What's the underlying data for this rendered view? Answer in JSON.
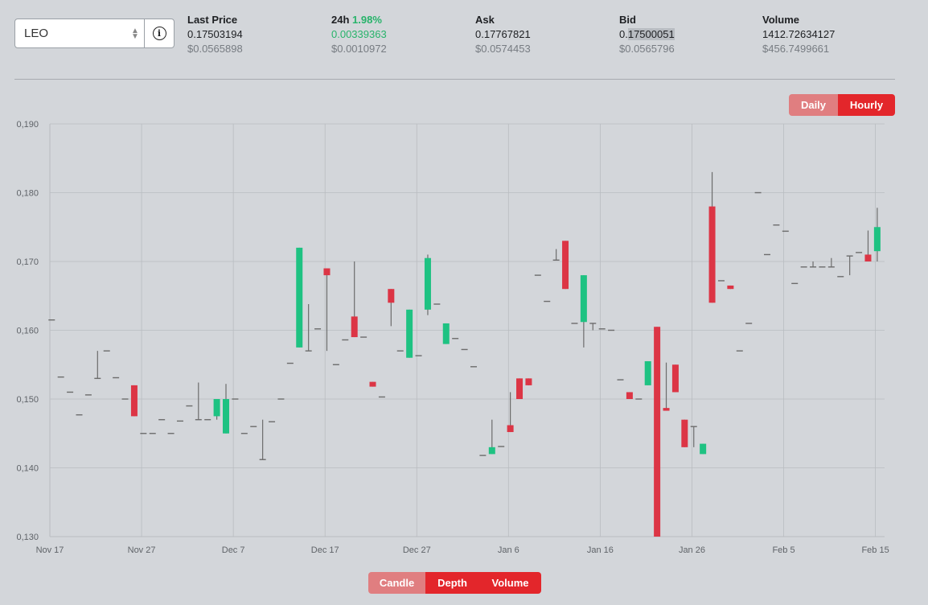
{
  "symbol": {
    "value": "LEO"
  },
  "stats": {
    "last_price": {
      "label": "Last Price",
      "main": "0.17503194",
      "sub": "$0.0565898"
    },
    "change_24h": {
      "label": "24h",
      "change": "1.98%",
      "main": "0.00339363",
      "sub": "$0.0010972"
    },
    "ask": {
      "label": "Ask",
      "main": "0.17767821",
      "sub": "$0.0574453"
    },
    "bid": {
      "label": "Bid",
      "main_prefix": "0.",
      "main_highlight": "17500051",
      "sub": "$0.0565796"
    },
    "volume": {
      "label": "Volume",
      "main": "1412.72634127",
      "sub": "$456.7499661"
    }
  },
  "range_toggle": {
    "daily": "Daily",
    "hourly": "Hourly",
    "selected": "Hourly"
  },
  "view_toggle": {
    "candle": "Candle",
    "depth": "Depth",
    "volume": "Volume",
    "selected": "Candle"
  },
  "colors": {
    "up": "#1ec282",
    "down": "#dc3545",
    "wick": "#6c6c6c",
    "grid": "#b9bcc0"
  },
  "chart_data": {
    "type": "candlestick",
    "ylim": [
      0.13,
      0.19
    ],
    "yticks": [
      "0,130",
      "0,140",
      "0,150",
      "0,160",
      "0,170",
      "0,180",
      "0,190"
    ],
    "xlim": [
      0,
      91
    ],
    "xticks": [
      {
        "day": 0,
        "label": "Nov 17"
      },
      {
        "day": 10,
        "label": "Nov 27"
      },
      {
        "day": 20,
        "label": "Dec 7"
      },
      {
        "day": 30,
        "label": "Dec 17"
      },
      {
        "day": 40,
        "label": "Dec 27"
      },
      {
        "day": 50,
        "label": "Jan 6"
      },
      {
        "day": 60,
        "label": "Jan 16"
      },
      {
        "day": 70,
        "label": "Jan 26"
      },
      {
        "day": 80,
        "label": "Feb 5"
      },
      {
        "day": 90,
        "label": "Feb 15"
      }
    ],
    "candles": [
      {
        "d": 0.2,
        "o": 0.1615,
        "h": 0.1615,
        "l": 0.1615,
        "c": 0.1615
      },
      {
        "d": 1.2,
        "o": 0.1532,
        "h": 0.1532,
        "l": 0.1532,
        "c": 0.1532
      },
      {
        "d": 2.2,
        "o": 0.151,
        "h": 0.151,
        "l": 0.151,
        "c": 0.151
      },
      {
        "d": 3.2,
        "o": 0.1477,
        "h": 0.1477,
        "l": 0.1477,
        "c": 0.1477
      },
      {
        "d": 4.2,
        "o": 0.1506,
        "h": 0.1506,
        "l": 0.1506,
        "c": 0.1506
      },
      {
        "d": 5.2,
        "o": 0.153,
        "h": 0.157,
        "l": 0.153,
        "c": 0.153
      },
      {
        "d": 6.2,
        "o": 0.157,
        "h": 0.157,
        "l": 0.157,
        "c": 0.157
      },
      {
        "d": 7.2,
        "o": 0.1531,
        "h": 0.1531,
        "l": 0.1531,
        "c": 0.1531
      },
      {
        "d": 8.2,
        "o": 0.15,
        "h": 0.15,
        "l": 0.15,
        "c": 0.15
      },
      {
        "d": 9.2,
        "o": 0.152,
        "h": 0.152,
        "l": 0.1475,
        "c": 0.1475
      },
      {
        "d": 10.2,
        "o": 0.145,
        "h": 0.145,
        "l": 0.145,
        "c": 0.145
      },
      {
        "d": 11.2,
        "o": 0.145,
        "h": 0.145,
        "l": 0.145,
        "c": 0.145
      },
      {
        "d": 12.2,
        "o": 0.147,
        "h": 0.147,
        "l": 0.147,
        "c": 0.147
      },
      {
        "d": 13.2,
        "o": 0.145,
        "h": 0.145,
        "l": 0.145,
        "c": 0.145
      },
      {
        "d": 14.2,
        "o": 0.1468,
        "h": 0.1468,
        "l": 0.1468,
        "c": 0.1468
      },
      {
        "d": 15.2,
        "o": 0.149,
        "h": 0.149,
        "l": 0.149,
        "c": 0.149
      },
      {
        "d": 16.2,
        "o": 0.147,
        "h": 0.1524,
        "l": 0.147,
        "c": 0.147
      },
      {
        "d": 17.2,
        "o": 0.147,
        "h": 0.147,
        "l": 0.147,
        "c": 0.147
      },
      {
        "d": 18.2,
        "o": 0.1475,
        "h": 0.15,
        "l": 0.147,
        "c": 0.15
      },
      {
        "d": 19.2,
        "o": 0.145,
        "h": 0.1522,
        "l": 0.145,
        "c": 0.15
      },
      {
        "d": 20.2,
        "o": 0.15,
        "h": 0.15,
        "l": 0.15,
        "c": 0.15
      },
      {
        "d": 21.2,
        "o": 0.145,
        "h": 0.145,
        "l": 0.145,
        "c": 0.145
      },
      {
        "d": 22.2,
        "o": 0.146,
        "h": 0.146,
        "l": 0.146,
        "c": 0.146
      },
      {
        "d": 23.2,
        "o": 0.1412,
        "h": 0.147,
        "l": 0.1412,
        "c": 0.1412
      },
      {
        "d": 24.2,
        "o": 0.1467,
        "h": 0.1467,
        "l": 0.1467,
        "c": 0.1467
      },
      {
        "d": 25.2,
        "o": 0.15,
        "h": 0.15,
        "l": 0.15,
        "c": 0.15
      },
      {
        "d": 26.2,
        "o": 0.1552,
        "h": 0.1552,
        "l": 0.1552,
        "c": 0.1552
      },
      {
        "d": 27.2,
        "o": 0.1575,
        "h": 0.172,
        "l": 0.1575,
        "c": 0.172
      },
      {
        "d": 28.2,
        "o": 0.157,
        "h": 0.1638,
        "l": 0.157,
        "c": 0.157
      },
      {
        "d": 29.2,
        "o": 0.1602,
        "h": 0.1602,
        "l": 0.1602,
        "c": 0.1602
      },
      {
        "d": 30.2,
        "o": 0.169,
        "h": 0.169,
        "l": 0.157,
        "c": 0.168
      },
      {
        "d": 31.2,
        "o": 0.155,
        "h": 0.155,
        "l": 0.155,
        "c": 0.155
      },
      {
        "d": 32.2,
        "o": 0.1586,
        "h": 0.1586,
        "l": 0.1586,
        "c": 0.1586
      },
      {
        "d": 33.2,
        "o": 0.162,
        "h": 0.17,
        "l": 0.159,
        "c": 0.159
      },
      {
        "d": 34.2,
        "o": 0.159,
        "h": 0.159,
        "l": 0.159,
        "c": 0.159
      },
      {
        "d": 35.2,
        "o": 0.1525,
        "h": 0.1525,
        "l": 0.1518,
        "c": 0.1518
      },
      {
        "d": 36.2,
        "o": 0.1503,
        "h": 0.1503,
        "l": 0.1503,
        "c": 0.1503
      },
      {
        "d": 37.2,
        "o": 0.166,
        "h": 0.166,
        "l": 0.1606,
        "c": 0.164
      },
      {
        "d": 38.2,
        "o": 0.157,
        "h": 0.157,
        "l": 0.157,
        "c": 0.157
      },
      {
        "d": 39.2,
        "o": 0.156,
        "h": 0.163,
        "l": 0.156,
        "c": 0.163
      },
      {
        "d": 40.2,
        "o": 0.1563,
        "h": 0.1563,
        "l": 0.1563,
        "c": 0.1563
      },
      {
        "d": 41.2,
        "o": 0.163,
        "h": 0.171,
        "l": 0.1622,
        "c": 0.1705
      },
      {
        "d": 42.2,
        "o": 0.1638,
        "h": 0.1638,
        "l": 0.1638,
        "c": 0.1638
      },
      {
        "d": 43.2,
        "o": 0.158,
        "h": 0.161,
        "l": 0.158,
        "c": 0.161
      },
      {
        "d": 44.2,
        "o": 0.1588,
        "h": 0.1588,
        "l": 0.1588,
        "c": 0.1588
      },
      {
        "d": 45.2,
        "o": 0.1572,
        "h": 0.1572,
        "l": 0.1572,
        "c": 0.1572
      },
      {
        "d": 46.2,
        "o": 0.1547,
        "h": 0.1547,
        "l": 0.1547,
        "c": 0.1547
      },
      {
        "d": 47.2,
        "o": 0.1418,
        "h": 0.1418,
        "l": 0.1418,
        "c": 0.1418
      },
      {
        "d": 48.2,
        "o": 0.142,
        "h": 0.147,
        "l": 0.142,
        "c": 0.143
      },
      {
        "d": 49.2,
        "o": 0.1431,
        "h": 0.1431,
        "l": 0.1431,
        "c": 0.1431
      },
      {
        "d": 50.2,
        "o": 0.1462,
        "h": 0.151,
        "l": 0.1452,
        "c": 0.1452
      },
      {
        "d": 51.2,
        "o": 0.153,
        "h": 0.153,
        "l": 0.15,
        "c": 0.15
      },
      {
        "d": 52.2,
        "o": 0.153,
        "h": 0.153,
        "l": 0.152,
        "c": 0.152
      },
      {
        "d": 53.2,
        "o": 0.168,
        "h": 0.168,
        "l": 0.168,
        "c": 0.168
      },
      {
        "d": 54.2,
        "o": 0.1642,
        "h": 0.1642,
        "l": 0.1642,
        "c": 0.1642
      },
      {
        "d": 55.2,
        "o": 0.1702,
        "h": 0.1718,
        "l": 0.1702,
        "c": 0.1702
      },
      {
        "d": 56.2,
        "o": 0.173,
        "h": 0.173,
        "l": 0.166,
        "c": 0.166
      },
      {
        "d": 57.2,
        "o": 0.161,
        "h": 0.161,
        "l": 0.161,
        "c": 0.161
      },
      {
        "d": 58.2,
        "o": 0.1612,
        "h": 0.168,
        "l": 0.1575,
        "c": 0.168
      },
      {
        "d": 59.2,
        "o": 0.161,
        "h": 0.161,
        "l": 0.16,
        "c": 0.161
      },
      {
        "d": 60.2,
        "o": 0.1602,
        "h": 0.1602,
        "l": 0.1602,
        "c": 0.1602
      },
      {
        "d": 61.2,
        "o": 0.16,
        "h": 0.16,
        "l": 0.16,
        "c": 0.16
      },
      {
        "d": 62.2,
        "o": 0.1528,
        "h": 0.1528,
        "l": 0.1528,
        "c": 0.1528
      },
      {
        "d": 63.2,
        "o": 0.151,
        "h": 0.151,
        "l": 0.15,
        "c": 0.15
      },
      {
        "d": 64.2,
        "o": 0.15,
        "h": 0.15,
        "l": 0.15,
        "c": 0.15
      },
      {
        "d": 65.2,
        "o": 0.152,
        "h": 0.1555,
        "l": 0.152,
        "c": 0.1555
      },
      {
        "d": 66.2,
        "o": 0.1605,
        "h": 0.1605,
        "l": 0.13,
        "c": 0.13
      },
      {
        "d": 67.2,
        "o": 0.1487,
        "h": 0.1553,
        "l": 0.1483,
        "c": 0.1483
      },
      {
        "d": 68.2,
        "o": 0.155,
        "h": 0.155,
        "l": 0.151,
        "c": 0.151
      },
      {
        "d": 69.2,
        "o": 0.147,
        "h": 0.147,
        "l": 0.143,
        "c": 0.143
      },
      {
        "d": 70.2,
        "o": 0.146,
        "h": 0.146,
        "l": 0.143,
        "c": 0.146
      },
      {
        "d": 71.2,
        "o": 0.142,
        "h": 0.1435,
        "l": 0.142,
        "c": 0.1435
      },
      {
        "d": 72.2,
        "o": 0.178,
        "h": 0.183,
        "l": 0.164,
        "c": 0.164
      },
      {
        "d": 73.2,
        "o": 0.1672,
        "h": 0.1672,
        "l": 0.1672,
        "c": 0.1672
      },
      {
        "d": 74.2,
        "o": 0.1665,
        "h": 0.1665,
        "l": 0.166,
        "c": 0.166
      },
      {
        "d": 75.2,
        "o": 0.157,
        "h": 0.157,
        "l": 0.157,
        "c": 0.157
      },
      {
        "d": 76.2,
        "o": 0.161,
        "h": 0.161,
        "l": 0.161,
        "c": 0.161
      },
      {
        "d": 77.2,
        "o": 0.18,
        "h": 0.18,
        "l": 0.18,
        "c": 0.18
      },
      {
        "d": 78.2,
        "o": 0.171,
        "h": 0.171,
        "l": 0.171,
        "c": 0.171
      },
      {
        "d": 79.2,
        "o": 0.1753,
        "h": 0.1753,
        "l": 0.1753,
        "c": 0.1753
      },
      {
        "d": 80.2,
        "o": 0.1744,
        "h": 0.1744,
        "l": 0.1744,
        "c": 0.1744
      },
      {
        "d": 81.2,
        "o": 0.1668,
        "h": 0.1668,
        "l": 0.1668,
        "c": 0.1668
      },
      {
        "d": 82.2,
        "o": 0.1692,
        "h": 0.1692,
        "l": 0.1692,
        "c": 0.1692
      },
      {
        "d": 83.2,
        "o": 0.1692,
        "h": 0.17,
        "l": 0.1692,
        "c": 0.1692
      },
      {
        "d": 84.2,
        "o": 0.1692,
        "h": 0.1692,
        "l": 0.1692,
        "c": 0.1692
      },
      {
        "d": 85.2,
        "o": 0.1692,
        "h": 0.1705,
        "l": 0.1692,
        "c": 0.1692
      },
      {
        "d": 86.2,
        "o": 0.1678,
        "h": 0.1678,
        "l": 0.1678,
        "c": 0.1678
      },
      {
        "d": 87.2,
        "o": 0.1708,
        "h": 0.1708,
        "l": 0.168,
        "c": 0.1708
      },
      {
        "d": 88.2,
        "o": 0.1713,
        "h": 0.1713,
        "l": 0.1713,
        "c": 0.1713
      },
      {
        "d": 89.2,
        "o": 0.171,
        "h": 0.1745,
        "l": 0.17,
        "c": 0.17
      },
      {
        "d": 90.2,
        "o": 0.1715,
        "h": 0.1778,
        "l": 0.17,
        "c": 0.175
      }
    ]
  }
}
